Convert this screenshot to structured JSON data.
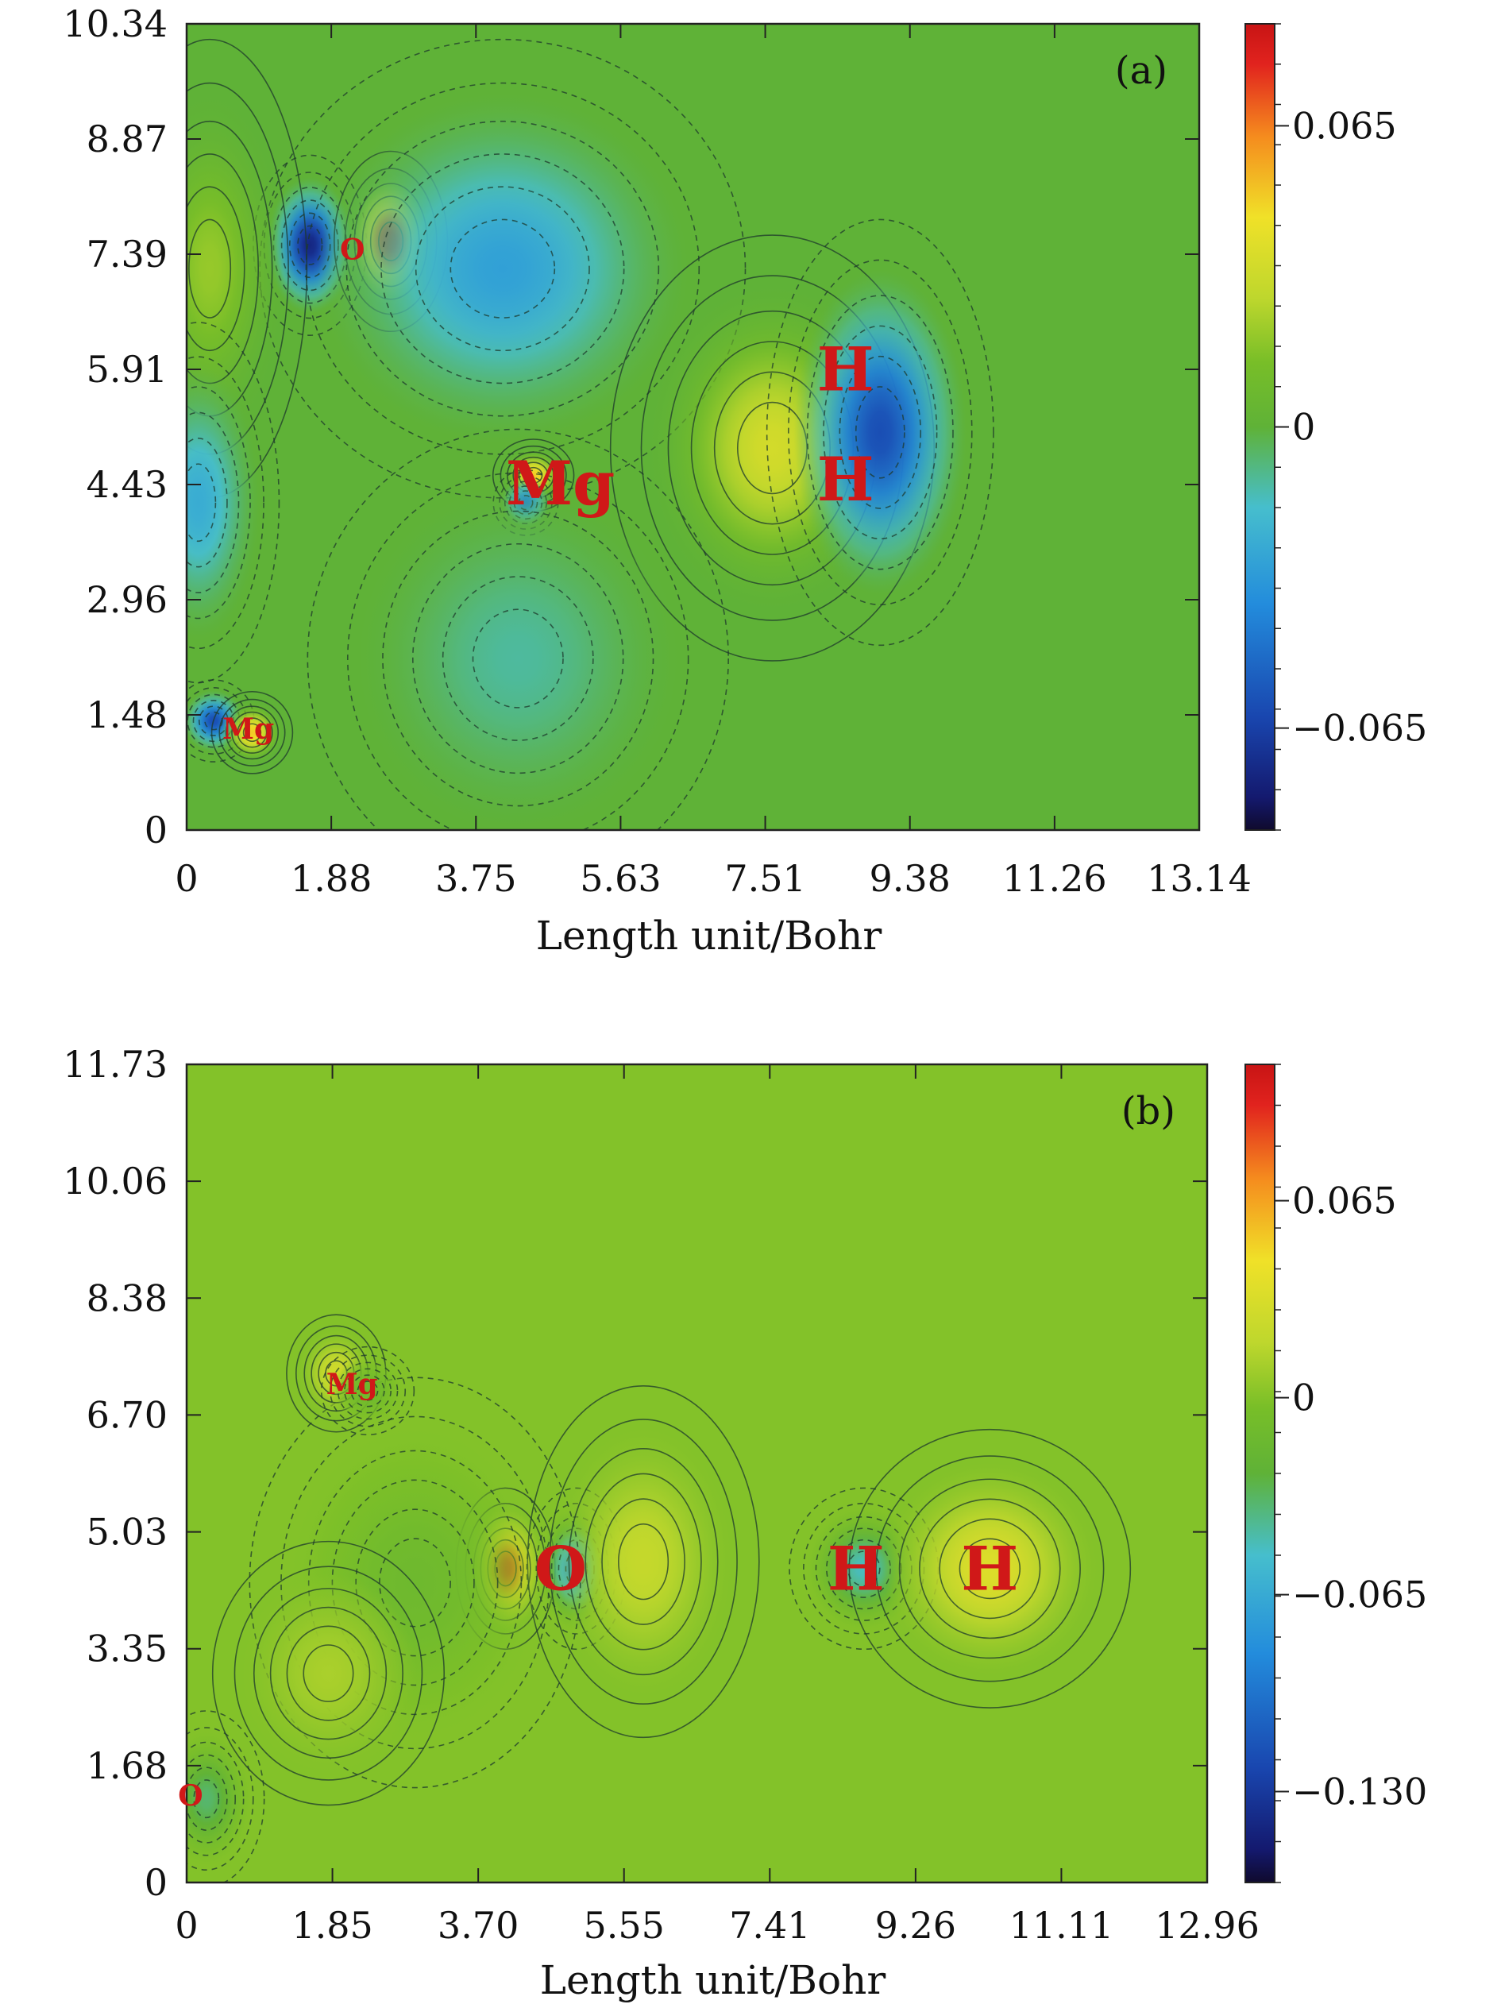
{
  "chart_data": [
    {
      "type": "heatmap",
      "panel_label": "(a)",
      "xlabel": "Length unit/Bohr",
      "ylabel": "",
      "x_ticks": [
        "0",
        "1.88",
        "3.75",
        "5.63",
        "7.51",
        "9.38",
        "11.26",
        "13.14"
      ],
      "y_ticks": [
        "0",
        "1.48",
        "2.96",
        "4.43",
        "5.91",
        "7.39",
        "8.87",
        "10.34"
      ],
      "xlim": [
        0,
        13.14
      ],
      "ylim": [
        0,
        10.34
      ],
      "colorbar_ticks": [
        "0.065",
        "0",
        "−0.065"
      ],
      "colorbar_values": [
        0.065,
        0,
        -0.065
      ],
      "colorbar_range": [
        -0.087,
        0.087
      ],
      "atoms": [
        {
          "label": "O",
          "x": 2.15,
          "y": 7.45,
          "size": "small"
        },
        {
          "label": "Mg",
          "x": 4.85,
          "y": 4.45,
          "size": "large"
        },
        {
          "label": "H",
          "x": 8.55,
          "y": 5.91,
          "size": "large"
        },
        {
          "label": "H",
          "x": 8.55,
          "y": 4.5,
          "size": "large"
        },
        {
          "label": "Mg",
          "x": 0.8,
          "y": 1.3,
          "size": "small"
        }
      ],
      "lobes": [
        {
          "x": 1.6,
          "y": 7.5,
          "sx": 0.35,
          "sy": 0.55,
          "v": -0.075
        },
        {
          "x": 2.65,
          "y": 7.55,
          "sx": 0.35,
          "sy": 0.55,
          "v": 0.085
        },
        {
          "x": 4.1,
          "y": 7.2,
          "sx": 1.5,
          "sy": 1.4,
          "v": -0.03
        },
        {
          "x": 0.3,
          "y": 7.2,
          "sx": 0.6,
          "sy": 1.4,
          "v": 0.02
        },
        {
          "x": 4.5,
          "y": 4.55,
          "sx": 0.25,
          "sy": 0.22,
          "v": 0.05
        },
        {
          "x": 4.4,
          "y": 4.2,
          "sx": 0.2,
          "sy": 0.2,
          "v": -0.04
        },
        {
          "x": 7.6,
          "y": 4.9,
          "sx": 1.0,
          "sy": 1.3,
          "v": 0.035
        },
        {
          "x": 9.0,
          "y": 5.1,
          "sx": 0.7,
          "sy": 1.3,
          "v": -0.06
        },
        {
          "x": 0.15,
          "y": 4.2,
          "sx": 0.5,
          "sy": 1.1,
          "v": -0.025
        },
        {
          "x": 4.3,
          "y": 2.2,
          "sx": 1.3,
          "sy": 1.4,
          "v": -0.012
        },
        {
          "x": 0.35,
          "y": 1.4,
          "sx": 0.25,
          "sy": 0.25,
          "v": -0.06
        },
        {
          "x": 0.85,
          "y": 1.25,
          "sx": 0.25,
          "sy": 0.25,
          "v": 0.05
        }
      ]
    },
    {
      "type": "heatmap",
      "panel_label": "(b)",
      "xlabel": "Length unit/Bohr",
      "ylabel": "",
      "x_ticks": [
        "0",
        "1.85",
        "3.70",
        "5.55",
        "7.41",
        "9.26",
        "11.11",
        "12.96"
      ],
      "y_ticks": [
        "0",
        "1.68",
        "3.35",
        "5.03",
        "6.70",
        "8.38",
        "10.06",
        "11.73"
      ],
      "xlim": [
        0,
        12.96
      ],
      "ylim": [
        0,
        11.73
      ],
      "colorbar_ticks": [
        "0.065",
        "0",
        "−0.065",
        "−0.130"
      ],
      "colorbar_values": [
        0.065,
        0,
        -0.065,
        -0.13
      ],
      "colorbar_range": [
        -0.16,
        0.11
      ],
      "atoms": [
        {
          "label": "Mg",
          "x": 2.1,
          "y": 7.15,
          "size": "small"
        },
        {
          "label": "O",
          "x": 4.75,
          "y": 4.5,
          "size": "large"
        },
        {
          "label": "H",
          "x": 8.5,
          "y": 4.5,
          "size": "large"
        },
        {
          "label": "H",
          "x": 10.2,
          "y": 4.5,
          "size": "large"
        },
        {
          "label": "O",
          "x": 0.05,
          "y": 1.25,
          "size": "small"
        }
      ],
      "lobes": [
        {
          "x": 4.05,
          "y": 4.5,
          "sx": 0.3,
          "sy": 0.55,
          "v": 0.09
        },
        {
          "x": 4.95,
          "y": 4.5,
          "sx": 0.3,
          "sy": 0.55,
          "v": -0.08
        },
        {
          "x": 5.8,
          "y": 4.6,
          "sx": 0.7,
          "sy": 1.2,
          "v": 0.022
        },
        {
          "x": 2.9,
          "y": 4.3,
          "sx": 1.0,
          "sy": 1.4,
          "v": -0.012
        },
        {
          "x": 8.6,
          "y": 4.5,
          "sx": 0.45,
          "sy": 0.55,
          "v": -0.05
        },
        {
          "x": 10.2,
          "y": 4.5,
          "sx": 0.85,
          "sy": 0.95,
          "v": 0.035
        },
        {
          "x": 1.9,
          "y": 7.3,
          "sx": 0.3,
          "sy": 0.4,
          "v": 0.028
        },
        {
          "x": 2.3,
          "y": 7.05,
          "sx": 0.28,
          "sy": 0.3,
          "v": -0.012
        },
        {
          "x": 0.25,
          "y": 1.2,
          "sx": 0.35,
          "sy": 0.6,
          "v": -0.035
        },
        {
          "x": 1.8,
          "y": 3.0,
          "sx": 0.7,
          "sy": 0.9,
          "v": 0.012
        }
      ]
    }
  ]
}
